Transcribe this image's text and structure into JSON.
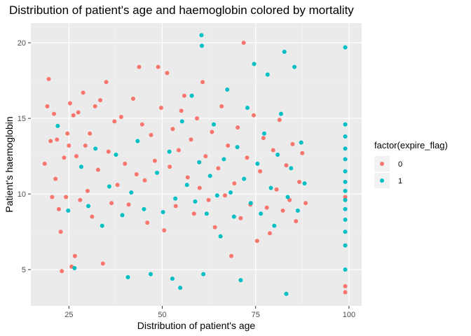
{
  "chart_data": {
    "type": "scatter",
    "title": "Distribution of patient's age and haemoglobin colored by mortality",
    "xlabel": "Distribution of patient's age",
    "ylabel": "Patient's haemoglobin",
    "xlim": [
      14.8,
      103.4
    ],
    "ylim": [
      2.6,
      21.3
    ],
    "xticks": [
      25,
      50,
      75,
      100
    ],
    "yticks": [
      5,
      10,
      15,
      20
    ],
    "xtick_labels": [
      "25",
      "50",
      "75",
      "100"
    ],
    "ytick_labels": [
      "5",
      "10",
      "15",
      "20"
    ],
    "grid": true,
    "legend": {
      "title": "factor(expire_flag)",
      "position": "right",
      "entries": [
        "0",
        "1"
      ]
    },
    "colors": {
      "panel_bg": "#ebebeb",
      "grid_major": "#ffffff",
      "grid_minor": "#f5f5f5",
      "0": "#f8766d",
      "1": "#00bfc4"
    },
    "series": [
      {
        "name": "0",
        "color": "#f8766d",
        "points": [
          [
            18.5,
            12.0
          ],
          [
            19.2,
            15.8
          ],
          [
            19.6,
            17.6
          ],
          [
            20.1,
            13.5
          ],
          [
            20.5,
            9.8
          ],
          [
            21.0,
            15.3
          ],
          [
            21.4,
            11.0
          ],
          [
            21.8,
            13.6
          ],
          [
            22.3,
            9.0
          ],
          [
            22.8,
            7.5
          ],
          [
            23.1,
            4.9
          ],
          [
            23.7,
            12.4
          ],
          [
            24.2,
            9.8
          ],
          [
            24.6,
            14.0
          ],
          [
            25.0,
            13.2
          ],
          [
            25.3,
            16.0
          ],
          [
            25.7,
            5.2
          ],
          [
            26.2,
            15.2
          ],
          [
            26.6,
            5.9
          ],
          [
            27.0,
            12.5
          ],
          [
            27.5,
            15.4
          ],
          [
            28.0,
            9.6
          ],
          [
            28.8,
            16.7
          ],
          [
            29.4,
            13.2
          ],
          [
            30.0,
            10.2
          ],
          [
            30.6,
            14.0
          ],
          [
            31.2,
            8.5
          ],
          [
            32.0,
            15.8
          ],
          [
            32.8,
            11.6
          ],
          [
            33.4,
            16.2
          ],
          [
            34.1,
            5.4
          ],
          [
            35.0,
            17.4
          ],
          [
            35.6,
            12.8
          ],
          [
            36.4,
            9.4
          ],
          [
            37.2,
            14.8
          ],
          [
            38.0,
            10.6
          ],
          [
            39.0,
            15.1
          ],
          [
            40.0,
            12.0
          ],
          [
            41.0,
            9.3
          ],
          [
            42.2,
            16.3
          ],
          [
            43.1,
            11.3
          ],
          [
            43.8,
            18.4
          ],
          [
            44.6,
            14.6
          ],
          [
            45.3,
            10.9
          ],
          [
            46.0,
            8.1
          ],
          [
            47.0,
            13.9
          ],
          [
            48.0,
            12.2
          ],
          [
            48.9,
            18.4
          ],
          [
            49.7,
            15.7
          ],
          [
            50.5,
            7.6
          ],
          [
            51.3,
            18.0
          ],
          [
            52.0,
            11.8
          ],
          [
            52.8,
            14.3
          ],
          [
            53.6,
            9.2
          ],
          [
            54.4,
            12.9
          ],
          [
            55.1,
            15.5
          ],
          [
            55.9,
            16.5
          ],
          [
            56.8,
            11.1
          ],
          [
            57.7,
            13.6
          ],
          [
            58.5,
            8.7
          ],
          [
            59.3,
            15.0
          ],
          [
            60.0,
            10.4
          ],
          [
            60.8,
            17.4
          ],
          [
            61.6,
            12.5
          ],
          [
            62.4,
            9.6
          ],
          [
            63.3,
            14.1
          ],
          [
            64.1,
            7.8
          ],
          [
            65.0,
            11.7
          ],
          [
            65.9,
            15.8
          ],
          [
            66.8,
            9.9
          ],
          [
            67.6,
            13.2
          ],
          [
            68.5,
            5.9
          ],
          [
            69.3,
            10.7
          ],
          [
            70.2,
            14.4
          ],
          [
            71.0,
            8.4
          ],
          [
            71.8,
            20.0
          ],
          [
            72.7,
            12.4
          ],
          [
            73.6,
            9.3
          ],
          [
            74.5,
            15.2
          ],
          [
            75.4,
            6.9
          ],
          [
            76.2,
            11.5
          ],
          [
            77.1,
            13.7
          ],
          [
            78.0,
            9.1
          ],
          [
            78.8,
            7.4
          ],
          [
            79.7,
            12.9
          ],
          [
            80.6,
            10.3
          ],
          [
            81.4,
            14.9
          ],
          [
            82.3,
            8.9
          ],
          [
            83.2,
            11.9
          ],
          [
            84.1,
            9.6
          ],
          [
            84.9,
            13.3
          ],
          [
            85.8,
            8.2
          ],
          [
            86.7,
            10.8
          ],
          [
            87.5,
            12.7
          ],
          [
            88.4,
            9.4
          ],
          [
            99.0,
            3.5
          ],
          [
            99.0,
            3.9
          ],
          [
            99.0,
            9.8
          ]
        ]
      },
      {
        "name": "1",
        "color": "#00bfc4",
        "points": [
          [
            22.0,
            14.5
          ],
          [
            24.8,
            8.9
          ],
          [
            26.5,
            5.1
          ],
          [
            28.3,
            11.8
          ],
          [
            30.2,
            9.2
          ],
          [
            32.1,
            13.0
          ],
          [
            33.9,
            7.9
          ],
          [
            35.8,
            10.5
          ],
          [
            37.6,
            12.6
          ],
          [
            39.3,
            8.6
          ],
          [
            40.8,
            4.5
          ],
          [
            41.7,
            10.1
          ],
          [
            43.4,
            13.5
          ],
          [
            45.1,
            9.0
          ],
          [
            46.9,
            4.7
          ],
          [
            48.6,
            11.4
          ],
          [
            50.2,
            8.8
          ],
          [
            51.9,
            12.8
          ],
          [
            52.7,
            4.4
          ],
          [
            53.5,
            9.7
          ],
          [
            54.8,
            3.8
          ],
          [
            55.3,
            14.8
          ],
          [
            56.6,
            10.6
          ],
          [
            57.9,
            16.5
          ],
          [
            58.8,
            9.5
          ],
          [
            59.9,
            12.1
          ],
          [
            60.5,
            20.5
          ],
          [
            60.6,
            19.8
          ],
          [
            61.0,
            4.7
          ],
          [
            61.9,
            8.7
          ],
          [
            62.8,
            11.2
          ],
          [
            63.8,
            14.6
          ],
          [
            64.7,
            9.9
          ],
          [
            65.6,
            7.2
          ],
          [
            66.5,
            12.3
          ],
          [
            67.4,
            16.9
          ],
          [
            68.3,
            10.1
          ],
          [
            69.2,
            8.5
          ],
          [
            70.1,
            13.1
          ],
          [
            71.0,
            4.3
          ],
          [
            71.9,
            11.0
          ],
          [
            72.8,
            15.7
          ],
          [
            73.7,
            9.4
          ],
          [
            74.6,
            18.6
          ],
          [
            75.5,
            12.0
          ],
          [
            76.4,
            8.7
          ],
          [
            77.3,
            14.0
          ],
          [
            78.2,
            17.9
          ],
          [
            79.1,
            10.4
          ],
          [
            80.0,
            7.9
          ],
          [
            80.9,
            12.6
          ],
          [
            81.8,
            15.3
          ],
          [
            82.7,
            19.4
          ],
          [
            83.2,
            3.4
          ],
          [
            83.6,
            9.8
          ],
          [
            84.5,
            11.7
          ],
          [
            85.4,
            18.4
          ],
          [
            86.3,
            8.9
          ],
          [
            87.2,
            13.4
          ],
          [
            88.1,
            10.7
          ],
          [
            99.0,
            19.7
          ],
          [
            99.0,
            14.6
          ],
          [
            99.0,
            13.8
          ],
          [
            99.0,
            13.0
          ],
          [
            99.0,
            12.3
          ],
          [
            99.0,
            11.5
          ],
          [
            99.0,
            10.8
          ],
          [
            99.0,
            10.2
          ],
          [
            99.0,
            9.6
          ],
          [
            99.0,
            9.0
          ],
          [
            99.0,
            8.3
          ],
          [
            99.0,
            7.5
          ],
          [
            99.0,
            6.6
          ],
          [
            99.0,
            5.0
          ]
        ]
      }
    ]
  }
}
